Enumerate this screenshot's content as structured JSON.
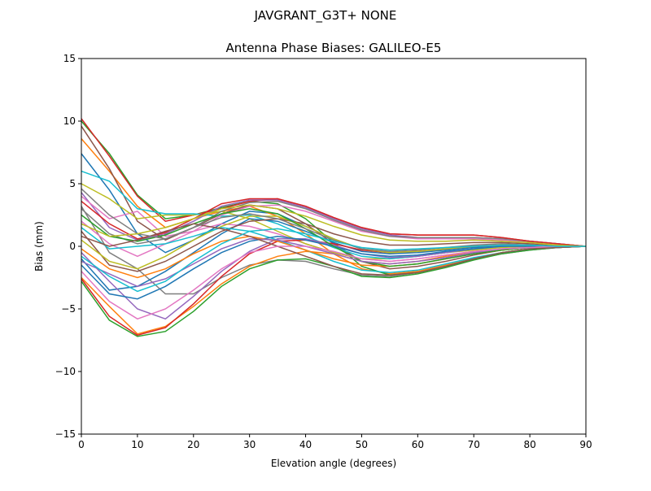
{
  "chart_data": {
    "type": "line",
    "suptitle": "JAVGRANT_G3T+   NONE",
    "title": "Antenna Phase Biases: GALILEO-E5",
    "xlabel": "Elevation angle (degrees)",
    "ylabel": "Bias (mm)",
    "xlim": [
      0,
      90
    ],
    "ylim": [
      -15,
      15
    ],
    "xticks": [
      0,
      10,
      20,
      30,
      40,
      50,
      60,
      70,
      80,
      90
    ],
    "yticks": [
      -15,
      -10,
      -5,
      0,
      5,
      10,
      15
    ],
    "ytick_labels": [
      "−15",
      "−10",
      "−5",
      "0",
      "5",
      "10",
      "15"
    ],
    "grid": false,
    "x": [
      0,
      5,
      10,
      15,
      20,
      25,
      30,
      35,
      40,
      45,
      50,
      55,
      60,
      65,
      70,
      75,
      80,
      85,
      90
    ],
    "colors": [
      "#1f77b4",
      "#ff7f0e",
      "#2ca02c",
      "#d62728",
      "#9467bd",
      "#8c564b",
      "#e377c2",
      "#7f7f7f",
      "#bcbd22",
      "#17becf"
    ],
    "series": [
      {
        "values": [
          7.4,
          4.5,
          1.0,
          -0.5,
          0.5,
          1.8,
          2.8,
          2.6,
          1.6,
          0.6,
          -0.2,
          -0.5,
          -0.4,
          -0.2,
          0.0,
          0.1,
          0.1,
          0.0,
          0
        ]
      },
      {
        "values": [
          8.6,
          6.0,
          3.2,
          1.5,
          2.2,
          2.8,
          3.2,
          2.4,
          1.0,
          -0.6,
          -1.8,
          -2.2,
          -2.0,
          -1.5,
          -1.0,
          -0.5,
          -0.2,
          -0.1,
          0
        ]
      },
      {
        "values": [
          10.0,
          7.4,
          4.1,
          2.2,
          2.5,
          3.1,
          3.6,
          3.4,
          2.2,
          0.3,
          -1.6,
          -2.3,
          -2.1,
          -1.6,
          -1.0,
          -0.5,
          -0.2,
          -0.1,
          0
        ]
      },
      {
        "values": [
          10.2,
          7.2,
          4.0,
          2.0,
          2.5,
          3.0,
          3.6,
          3.8,
          3.2,
          2.3,
          1.5,
          1.0,
          0.9,
          0.9,
          0.9,
          0.7,
          0.4,
          0.2,
          0
        ]
      },
      {
        "values": [
          4.3,
          1.5,
          0.5,
          1.0,
          2.0,
          3.2,
          3.7,
          3.7,
          3.1,
          2.2,
          1.4,
          0.9,
          0.7,
          0.7,
          0.7,
          0.6,
          0.4,
          0.2,
          0
        ]
      },
      {
        "values": [
          9.6,
          6.2,
          2.0,
          0.5,
          1.5,
          2.6,
          3.3,
          3.0,
          1.8,
          0.2,
          -1.2,
          -1.8,
          -1.6,
          -1.2,
          -0.7,
          -0.3,
          -0.1,
          0.0,
          0
        ]
      },
      {
        "values": [
          4.0,
          2.2,
          2.8,
          0.8,
          1.2,
          1.8,
          1.6,
          1.0,
          0.2,
          -0.5,
          -1.0,
          -1.2,
          -1.0,
          -0.7,
          -0.4,
          -0.2,
          -0.1,
          0.0,
          0
        ]
      },
      {
        "values": [
          3.2,
          -0.5,
          -1.8,
          -3.8,
          -3.8,
          -2.5,
          -1.5,
          -1.1,
          -1.2,
          -1.8,
          -2.3,
          -2.4,
          -2.1,
          -1.6,
          -1.0,
          -0.6,
          -0.3,
          -0.1,
          0
        ]
      },
      {
        "values": [
          5.0,
          3.8,
          2.2,
          2.5,
          2.5,
          2.8,
          2.2,
          1.2,
          0.2,
          -0.5,
          -1.0,
          -1.0,
          -0.8,
          -0.5,
          -0.3,
          -0.1,
          0.0,
          0.0,
          0
        ]
      },
      {
        "values": [
          6.0,
          5.2,
          3.0,
          2.6,
          2.6,
          2.4,
          2.5,
          1.8,
          0.8,
          -0.1,
          -0.8,
          -1.0,
          -0.8,
          -0.5,
          -0.2,
          0.0,
          0.1,
          0.0,
          0
        ]
      },
      {
        "values": [
          -1.0,
          -3.5,
          -3.2,
          -2.0,
          -0.5,
          1.0,
          2.2,
          2.0,
          1.2,
          0.3,
          -0.4,
          -0.6,
          -0.5,
          -0.3,
          -0.1,
          0.0,
          0.1,
          0.0,
          0
        ]
      },
      {
        "values": [
          -2.5,
          -4.8,
          -7.0,
          -6.4,
          -4.8,
          -3.0,
          -1.6,
          -0.8,
          -0.4,
          -0.6,
          -1.2,
          -1.4,
          -1.2,
          -0.8,
          -0.5,
          -0.3,
          -0.1,
          0.0,
          0
        ]
      },
      {
        "values": [
          -2.8,
          -5.9,
          -7.2,
          -6.8,
          -5.2,
          -3.2,
          -1.8,
          -1.1,
          -1.0,
          -1.6,
          -2.4,
          -2.5,
          -2.2,
          -1.7,
          -1.1,
          -0.6,
          -0.3,
          -0.1,
          0
        ]
      },
      {
        "values": [
          -2.6,
          -5.6,
          -7.1,
          -6.5,
          -4.6,
          -2.4,
          -0.6,
          0.4,
          0.5,
          0.2,
          -0.3,
          -0.5,
          -0.4,
          -0.2,
          0.0,
          0.1,
          0.1,
          0.0,
          0
        ]
      },
      {
        "values": [
          -0.5,
          -2.8,
          -5.0,
          -5.8,
          -4.0,
          -2.0,
          -0.4,
          0.6,
          0.6,
          0.1,
          -0.6,
          -0.9,
          -0.8,
          -0.5,
          -0.2,
          0.0,
          0.1,
          0.0,
          0
        ]
      },
      {
        "values": [
          1.2,
          -1.5,
          -2.0,
          -1.2,
          0.0,
          1.2,
          2.0,
          2.2,
          1.8,
          1.0,
          0.4,
          0.1,
          0.1,
          0.2,
          0.3,
          0.3,
          0.2,
          0.1,
          0
        ]
      },
      {
        "values": [
          2.0,
          0.2,
          -0.8,
          0.2,
          1.2,
          2.5,
          3.2,
          3.3,
          2.8,
          2.0,
          1.2,
          0.8,
          0.6,
          0.6,
          0.6,
          0.5,
          0.3,
          0.1,
          0
        ]
      },
      {
        "values": [
          3.0,
          1.0,
          0.2,
          0.6,
          1.5,
          2.8,
          3.5,
          3.6,
          3.0,
          2.1,
          1.3,
          0.8,
          0.7,
          0.7,
          0.7,
          0.6,
          0.4,
          0.2,
          0
        ]
      },
      {
        "values": [
          0.5,
          -1.2,
          -1.8,
          -0.8,
          0.5,
          1.6,
          2.4,
          2.4,
          1.6,
          0.6,
          -0.2,
          -0.5,
          -0.4,
          -0.2,
          0.0,
          0.1,
          0.1,
          0.0,
          0
        ]
      },
      {
        "values": [
          1.5,
          -0.2,
          0.0,
          0.2,
          0.8,
          1.5,
          1.2,
          0.5,
          -0.3,
          -1.2,
          -1.9,
          -2.1,
          -1.9,
          -1.4,
          -0.9,
          -0.5,
          -0.2,
          -0.1,
          0
        ]
      },
      {
        "values": [
          -1.5,
          -3.8,
          -4.2,
          -3.2,
          -1.8,
          -0.5,
          0.4,
          0.8,
          0.5,
          0.0,
          -0.6,
          -0.8,
          -0.7,
          -0.4,
          -0.2,
          0.0,
          0.0,
          0.0,
          0
        ]
      },
      {
        "values": [
          -0.2,
          -1.8,
          -2.5,
          -1.8,
          -0.6,
          0.4,
          0.8,
          0.4,
          -0.3,
          -1.0,
          -1.5,
          -1.6,
          -1.4,
          -1.0,
          -0.6,
          -0.3,
          -0.1,
          0.0,
          0
        ]
      },
      {
        "values": [
          2.5,
          0.8,
          0.4,
          0.9,
          1.8,
          2.6,
          3.0,
          2.6,
          1.4,
          0.0,
          -1.2,
          -1.6,
          -1.4,
          -1.0,
          -0.6,
          -0.3,
          -0.1,
          0.0,
          0
        ]
      },
      {
        "values": [
          3.6,
          1.8,
          0.6,
          1.1,
          2.2,
          3.4,
          3.8,
          3.8,
          3.2,
          2.3,
          1.5,
          1.0,
          0.9,
          0.9,
          0.9,
          0.7,
          0.4,
          0.2,
          0
        ]
      },
      {
        "values": [
          -1.2,
          -2.2,
          -3.2,
          -2.6,
          -1.4,
          -0.2,
          0.6,
          0.5,
          0.0,
          -0.6,
          -1.2,
          -1.4,
          -1.2,
          -0.9,
          -0.5,
          -0.2,
          -0.1,
          0.0,
          0
        ]
      },
      {
        "values": [
          0.8,
          0.0,
          0.5,
          1.2,
          1.8,
          1.4,
          0.8,
          0.0,
          -0.8,
          -1.6,
          -2.2,
          -2.3,
          -2.1,
          -1.6,
          -1.0,
          -0.5,
          -0.2,
          -0.1,
          0
        ]
      },
      {
        "values": [
          -2.0,
          -4.4,
          -5.8,
          -5.0,
          -3.5,
          -1.8,
          -0.5,
          0.0,
          0.0,
          -0.4,
          -1.0,
          -1.2,
          -1.0,
          -0.7,
          -0.4,
          -0.2,
          -0.1,
          0.0,
          0
        ]
      },
      {
        "values": [
          4.6,
          2.5,
          1.0,
          0.6,
          1.5,
          2.3,
          2.6,
          2.2,
          1.4,
          0.5,
          -0.2,
          -0.4,
          -0.3,
          -0.1,
          0.1,
          0.2,
          0.1,
          0.0,
          0
        ]
      },
      {
        "values": [
          1.8,
          0.8,
          1.0,
          1.5,
          2.2,
          3.0,
          3.3,
          3.0,
          2.4,
          1.6,
          0.9,
          0.5,
          0.4,
          0.4,
          0.5,
          0.4,
          0.3,
          0.1,
          0
        ]
      },
      {
        "values": [
          -0.8,
          -2.4,
          -3.6,
          -2.8,
          -1.2,
          0.2,
          1.2,
          1.4,
          1.0,
          0.4,
          -0.1,
          -0.3,
          -0.2,
          -0.1,
          0.0,
          0.1,
          0.1,
          0.0,
          0
        ]
      }
    ]
  }
}
